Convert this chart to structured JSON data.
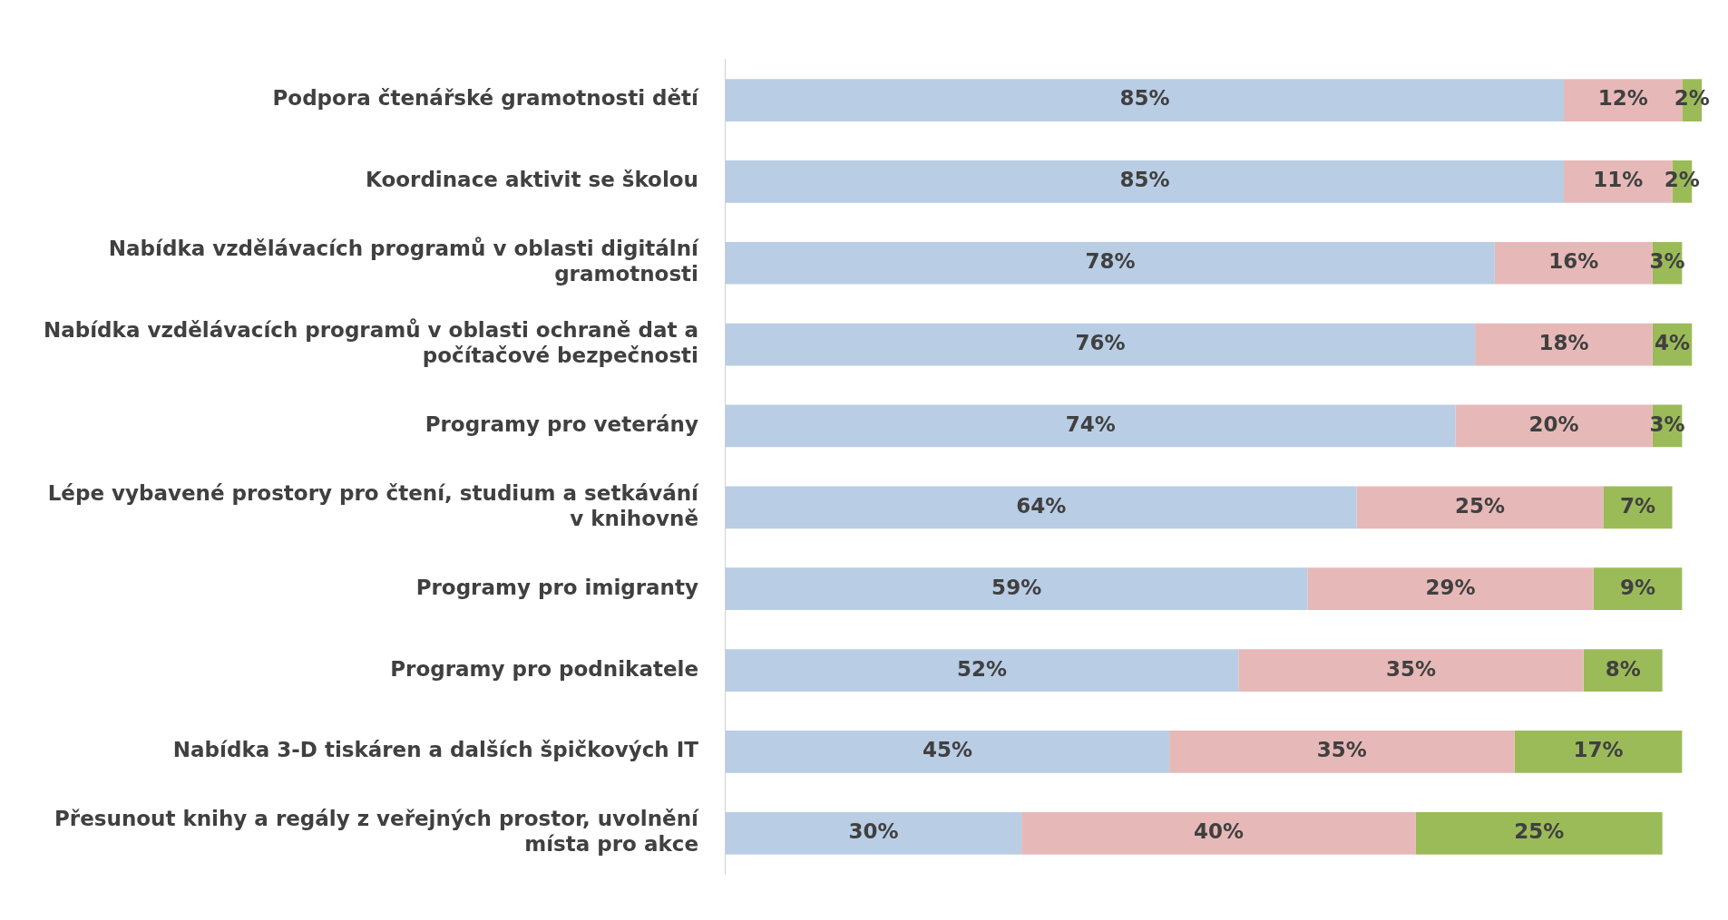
{
  "chart_data": {
    "type": "bar",
    "orientation": "horizontal",
    "stacked": true,
    "legend": false,
    "grid": false,
    "tick_labels": "y",
    "categories": [
      "Podpora čtenářské gramotnosti dětí",
      "Koordinace aktivit se školou",
      "Nabídka vzdělávacích programů v oblasti digitální gramotnosti",
      "Nabídka vzdělávacích programů v oblasti ochraně dat a počítačové bezpečnosti",
      "Programy pro veterány",
      "Lépe vybavené prostory pro čtení, studium a setkávání v knihovně",
      "Programy pro imigranty",
      "Programy pro podnikatele",
      "Nabídka 3-D tiskáren a dalších špičkových IT",
      "Přesunout knihy a regály z veřejných prostor, uvolnění místa pro akce"
    ],
    "series": [
      {
        "color": "#b9cde5",
        "values": [
          85,
          85,
          78,
          76,
          74,
          64,
          59,
          52,
          45,
          30
        ],
        "value_labels": [
          "85%",
          "85%",
          "78%",
          "76%",
          "74%",
          "64%",
          "59%",
          "52%",
          "45%",
          "30%"
        ]
      },
      {
        "color": "#e6b9b8",
        "values": [
          12,
          11,
          16,
          18,
          20,
          25,
          29,
          35,
          35,
          40
        ],
        "value_labels": [
          "12%",
          "11%",
          "16%",
          "18%",
          "20%",
          "25%",
          "29%",
          "35%",
          "35%",
          "40%"
        ]
      },
      {
        "color": "#9bbb59",
        "values": [
          2,
          2,
          3,
          4,
          3,
          7,
          9,
          8,
          17,
          25
        ],
        "value_labels": [
          "2%",
          "2%",
          "3%",
          "4%",
          "3%",
          "7%",
          "9%",
          "8%",
          "17%",
          "25%"
        ]
      }
    ]
  }
}
